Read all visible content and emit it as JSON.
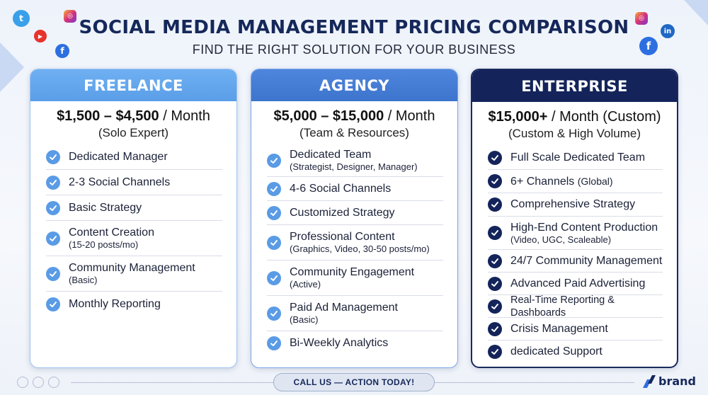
{
  "header": {
    "title": "SOCIAL MEDIA MANAGEMENT PRICING COMPARISON",
    "subtitle": "FIND THE RIGHT SOLUTION FOR YOUR BUSINESS"
  },
  "decor_icons": [
    "twitter-icon",
    "instagram-icon",
    "youtube-icon",
    "facebook-icon",
    "instagram-icon",
    "linkedin-icon",
    "facebook-icon"
  ],
  "plans": {
    "freelance": {
      "name": "FREELANCE",
      "price": "$1,500 – $4,500",
      "period": " / Month",
      "note": "(Solo Expert)",
      "features": [
        {
          "label": "Dedicated Manager",
          "sub": ""
        },
        {
          "label": "2-3 Social Channels",
          "sub": ""
        },
        {
          "label": "Basic Strategy",
          "sub": ""
        },
        {
          "label": "Content Creation",
          "sub": "(15-20 posts/mo)"
        },
        {
          "label": "Community Management",
          "sub": "(Basic)"
        },
        {
          "label": "Monthly Reporting",
          "sub": ""
        }
      ]
    },
    "agency": {
      "name": "AGENCY",
      "price": "$5,000 – $15,000",
      "period": " / Month",
      "note": "(Team & Resources)",
      "features": [
        {
          "label": "Dedicated Team",
          "sub": "(Strategist, Designer, Manager)"
        },
        {
          "label": "4-6 Social Channels",
          "sub": ""
        },
        {
          "label": "Customized Strategy",
          "sub": ""
        },
        {
          "label": "Professional Content",
          "sub": "(Graphics, Video, 30-50 posts/mo)"
        },
        {
          "label": "Community Engagement",
          "sub": "(Active)"
        },
        {
          "label": "Paid Ad Management",
          "sub": "(Basic)"
        },
        {
          "label": "Bi-Weekly Analytics",
          "sub": ""
        }
      ]
    },
    "enterprise": {
      "name": "ENTERPRISE",
      "price": "$15,000+",
      "period": " / Month (Custom)",
      "note": "(Custom & High Volume)",
      "features": [
        {
          "label": "Full Scale Dedicated Team",
          "sub": ""
        },
        {
          "label": "6+ Channels",
          "inline": "(Global)",
          "sub": ""
        },
        {
          "label": "Comprehensive Strategy",
          "sub": ""
        },
        {
          "label": "High-End Content Production",
          "sub": "(Video, UGC, Scaleable)"
        },
        {
          "label": "24/7 Community Management",
          "sub": ""
        },
        {
          "label": "Advanced Paid Advertising",
          "sub": ""
        },
        {
          "label": "Real-Time Reporting & Dashboards",
          "sub": ""
        },
        {
          "label": "Crisis Management",
          "sub": ""
        },
        {
          "label": "dedicated Support",
          "sub": ""
        }
      ]
    }
  },
  "footer": {
    "cta": "CALL US — ACTION TODAY!",
    "brand": "brand"
  },
  "colors": {
    "title": "#16285a",
    "freelance_header": "#6fb0f2",
    "agency_header": "#4f86dd",
    "enterprise_header": "#14245a"
  }
}
